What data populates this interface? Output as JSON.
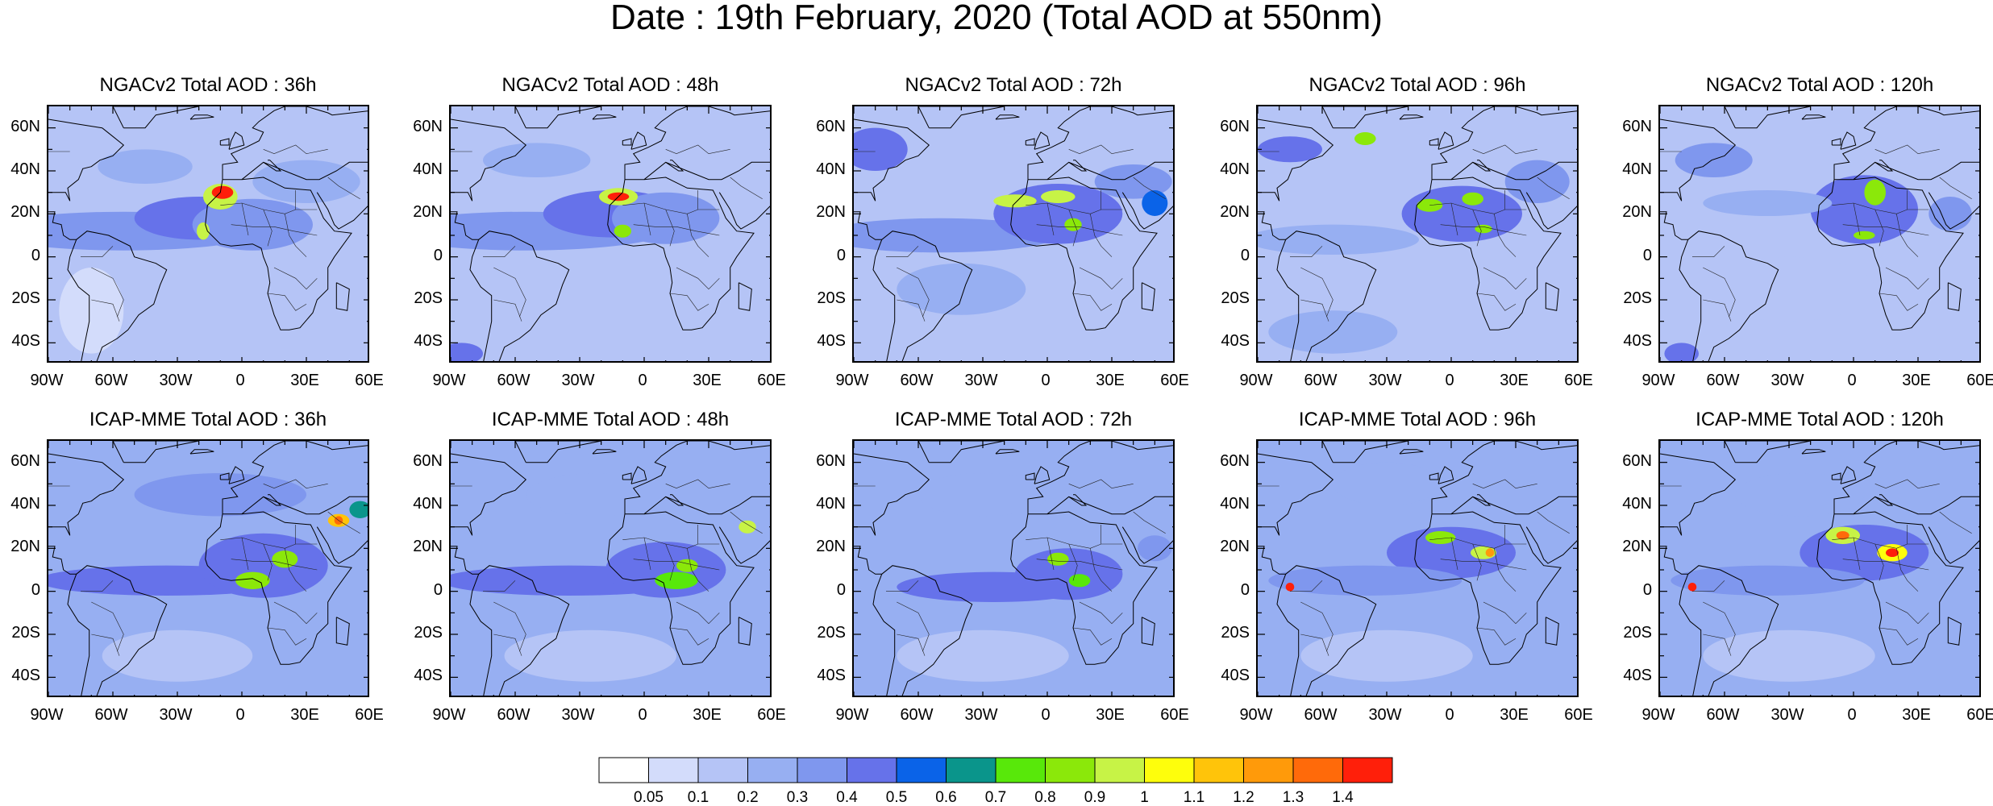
{
  "title": "Date : 19th February, 2020 (Total AOD at 550nm)",
  "lat_ticks": [
    "60N",
    "40N",
    "20N",
    "0",
    "20S",
    "40S"
  ],
  "lon_ticks": [
    "90W",
    "60W",
    "30W",
    "0",
    "30E",
    "60E"
  ],
  "panels": [
    {
      "title": "NGACv2 Total AOD : 36h"
    },
    {
      "title": "NGACv2 Total AOD : 48h"
    },
    {
      "title": "NGACv2 Total AOD : 72h"
    },
    {
      "title": "NGACv2 Total AOD : 96h"
    },
    {
      "title": "NGACv2 Total AOD : 120h"
    },
    {
      "title": "ICAP-MME Total AOD : 36h"
    },
    {
      "title": "ICAP-MME Total AOD : 48h"
    },
    {
      "title": "ICAP-MME Total AOD : 72h"
    },
    {
      "title": "ICAP-MME Total AOD : 96h"
    },
    {
      "title": "ICAP-MME Total AOD : 120h"
    }
  ],
  "colorbar": {
    "labels": [
      "0.05",
      "0.1",
      "0.2",
      "0.3",
      "0.4",
      "0.5",
      "0.6",
      "0.7",
      "0.8",
      "0.9",
      "1",
      "1.1",
      "1.2",
      "1.3",
      "1.4"
    ],
    "colors": [
      "#ffffff",
      "#d3dcfb",
      "#b5c4f6",
      "#97aff2",
      "#7f97ee",
      "#6672ea",
      "#0a63e8",
      "#0a958b",
      "#58e80a",
      "#8be80a",
      "#c7f346",
      "#fefe0c",
      "#ffc40a",
      "#ff9a0a",
      "#ff6a0a",
      "#ff1f0a"
    ]
  },
  "chart_data": {
    "type": "heatmap",
    "title": "Date : 19th February, 2020 (Total AOD at 550nm)",
    "x_axis": {
      "range": [
        -90,
        60
      ],
      "ticks": [
        -90,
        -60,
        -30,
        0,
        30,
        60
      ],
      "tick_labels": [
        "90W",
        "60W",
        "30W",
        "0",
        "30E",
        "60E"
      ]
    },
    "y_axis": {
      "range": [
        -50,
        70
      ],
      "ticks": [
        60,
        40,
        20,
        0,
        -20,
        -40
      ],
      "tick_labels": [
        "60N",
        "40N",
        "20N",
        "0",
        "20S",
        "40S"
      ]
    },
    "color_levels": [
      0.05,
      0.1,
      0.2,
      0.3,
      0.4,
      0.5,
      0.6,
      0.7,
      0.8,
      0.9,
      1,
      1.1,
      1.2,
      1.3,
      1.4
    ],
    "legend": "bottom",
    "maps": [
      {
        "title": "NGACv2 Total AOD : 36h",
        "background": 0.12,
        "features": [
          {
            "lon": -55,
            "lat": 12,
            "rx": 65,
            "ry": 9,
            "value": 0.3
          },
          {
            "lon": -20,
            "lat": 18,
            "rx": 30,
            "ry": 10,
            "value": 0.4
          },
          {
            "lon": 5,
            "lat": 15,
            "rx": 28,
            "ry": 12,
            "value": 0.35
          },
          {
            "lon": -45,
            "lat": 42,
            "rx": 22,
            "ry": 8,
            "value": 0.25
          },
          {
            "lon": -10,
            "lat": 28,
            "rx": 8,
            "ry": 6,
            "value": 0.9
          },
          {
            "lon": -9,
            "lat": 30,
            "rx": 5,
            "ry": 3,
            "value": 1.4
          },
          {
            "lon": -18,
            "lat": 12,
            "rx": 3,
            "ry": 4,
            "value": 0.9
          },
          {
            "lon": 30,
            "lat": 35,
            "rx": 25,
            "ry": 10,
            "value": 0.2
          },
          {
            "lon": -70,
            "lat": -25,
            "rx": 15,
            "ry": 20,
            "value": 0.08
          }
        ]
      },
      {
        "title": "NGACv2 Total AOD : 48h",
        "background": 0.12,
        "features": [
          {
            "lon": -55,
            "lat": 12,
            "rx": 65,
            "ry": 9,
            "value": 0.3
          },
          {
            "lon": -15,
            "lat": 20,
            "rx": 32,
            "ry": 11,
            "value": 0.4
          },
          {
            "lon": 10,
            "lat": 18,
            "rx": 25,
            "ry": 12,
            "value": 0.35
          },
          {
            "lon": -50,
            "lat": 45,
            "rx": 25,
            "ry": 8,
            "value": 0.25
          },
          {
            "lon": -12,
            "lat": 28,
            "rx": 9,
            "ry": 4,
            "value": 0.9
          },
          {
            "lon": -12,
            "lat": 28,
            "rx": 5,
            "ry": 2,
            "value": 1.4
          },
          {
            "lon": -10,
            "lat": 12,
            "rx": 4,
            "ry": 3,
            "value": 0.8
          },
          {
            "lon": -85,
            "lat": -45,
            "rx": 10,
            "ry": 5,
            "value": 0.4
          }
        ]
      },
      {
        "title": "NGACv2 Total AOD : 72h",
        "background": 0.12,
        "features": [
          {
            "lon": -50,
            "lat": 10,
            "rx": 55,
            "ry": 8,
            "value": 0.3
          },
          {
            "lon": 5,
            "lat": 20,
            "rx": 30,
            "ry": 14,
            "value": 0.4
          },
          {
            "lon": -80,
            "lat": 50,
            "rx": 15,
            "ry": 10,
            "value": 0.4
          },
          {
            "lon": -15,
            "lat": 26,
            "rx": 10,
            "ry": 3,
            "value": 0.9
          },
          {
            "lon": 5,
            "lat": 28,
            "rx": 8,
            "ry": 3,
            "value": 0.9
          },
          {
            "lon": 12,
            "lat": 15,
            "rx": 4,
            "ry": 3,
            "value": 0.8
          },
          {
            "lon": 40,
            "lat": 35,
            "rx": 18,
            "ry": 8,
            "value": 0.3
          },
          {
            "lon": 50,
            "lat": 25,
            "rx": 6,
            "ry": 6,
            "value": 0.5
          },
          {
            "lon": -40,
            "lat": -15,
            "rx": 30,
            "ry": 12,
            "value": 0.25
          }
        ]
      },
      {
        "title": "NGACv2 Total AOD : 96h",
        "background": 0.12,
        "features": [
          {
            "lon": 5,
            "lat": 20,
            "rx": 28,
            "ry": 13,
            "value": 0.45
          },
          {
            "lon": -55,
            "lat": 8,
            "rx": 40,
            "ry": 7,
            "value": 0.25
          },
          {
            "lon": -40,
            "lat": 55,
            "rx": 5,
            "ry": 3,
            "value": 0.8
          },
          {
            "lon": -75,
            "lat": 50,
            "rx": 15,
            "ry": 6,
            "value": 0.4
          },
          {
            "lon": -10,
            "lat": 24,
            "rx": 6,
            "ry": 3,
            "value": 0.85
          },
          {
            "lon": 10,
            "lat": 27,
            "rx": 5,
            "ry": 3,
            "value": 0.85
          },
          {
            "lon": 15,
            "lat": 13,
            "rx": 4,
            "ry": 2,
            "value": 0.85
          },
          {
            "lon": -55,
            "lat": -35,
            "rx": 30,
            "ry": 10,
            "value": 0.2
          },
          {
            "lon": 40,
            "lat": 35,
            "rx": 15,
            "ry": 10,
            "value": 0.3
          }
        ]
      },
      {
        "title": "NGACv2 Total AOD : 120h",
        "background": 0.12,
        "features": [
          {
            "lon": 5,
            "lat": 22,
            "rx": 25,
            "ry": 16,
            "value": 0.45
          },
          {
            "lon": -40,
            "lat": 25,
            "rx": 30,
            "ry": 6,
            "value": 0.25
          },
          {
            "lon": -65,
            "lat": 45,
            "rx": 18,
            "ry": 8,
            "value": 0.35
          },
          {
            "lon": 10,
            "lat": 30,
            "rx": 5,
            "ry": 6,
            "value": 0.85
          },
          {
            "lon": 5,
            "lat": 10,
            "rx": 5,
            "ry": 2,
            "value": 0.85
          },
          {
            "lon": -80,
            "lat": -45,
            "rx": 8,
            "ry": 5,
            "value": 0.4
          },
          {
            "lon": -30,
            "lat": -15,
            "rx": 40,
            "ry": 15,
            "value": 0.15
          },
          {
            "lon": 45,
            "lat": 20,
            "rx": 10,
            "ry": 8,
            "value": 0.3
          }
        ]
      },
      {
        "title": "ICAP-MME Total AOD : 36h",
        "background": 0.2,
        "features": [
          {
            "lon": -35,
            "lat": 5,
            "rx": 60,
            "ry": 7,
            "value": 0.4
          },
          {
            "lon": 10,
            "lat": 12,
            "rx": 30,
            "ry": 15,
            "value": 0.45
          },
          {
            "lon": -10,
            "lat": 45,
            "rx": 40,
            "ry": 10,
            "value": 0.3
          },
          {
            "lon": 5,
            "lat": 5,
            "rx": 8,
            "ry": 4,
            "value": 0.85
          },
          {
            "lon": 20,
            "lat": 15,
            "rx": 6,
            "ry": 4,
            "value": 0.85
          },
          {
            "lon": 45,
            "lat": 33,
            "rx": 5,
            "ry": 3,
            "value": 1.1
          },
          {
            "lon": 45,
            "lat": 33,
            "rx": 2,
            "ry": 2,
            "value": 1.3
          },
          {
            "lon": 55,
            "lat": 38,
            "rx": 5,
            "ry": 4,
            "value": 0.6
          },
          {
            "lon": -30,
            "lat": -30,
            "rx": 35,
            "ry": 12,
            "value": 0.15
          }
        ]
      },
      {
        "title": "ICAP-MME Total AOD : 48h",
        "background": 0.2,
        "features": [
          {
            "lon": -35,
            "lat": 5,
            "rx": 60,
            "ry": 7,
            "value": 0.4
          },
          {
            "lon": 10,
            "lat": 10,
            "rx": 28,
            "ry": 13,
            "value": 0.45
          },
          {
            "lon": 15,
            "lat": 5,
            "rx": 10,
            "ry": 4,
            "value": 0.7
          },
          {
            "lon": 20,
            "lat": 12,
            "rx": 5,
            "ry": 3,
            "value": 0.85
          },
          {
            "lon": 48,
            "lat": 30,
            "rx": 4,
            "ry": 3,
            "value": 0.9
          },
          {
            "lon": -20,
            "lat": 45,
            "rx": 35,
            "ry": 10,
            "value": 0.25
          },
          {
            "lon": -25,
            "lat": -30,
            "rx": 40,
            "ry": 12,
            "value": 0.15
          }
        ]
      },
      {
        "title": "ICAP-MME Total AOD : 72h",
        "background": 0.2,
        "features": [
          {
            "lon": -25,
            "lat": 2,
            "rx": 45,
            "ry": 7,
            "value": 0.4
          },
          {
            "lon": 10,
            "lat": 8,
            "rx": 25,
            "ry": 12,
            "value": 0.45
          },
          {
            "lon": 5,
            "lat": 15,
            "rx": 5,
            "ry": 3,
            "value": 0.85
          },
          {
            "lon": 15,
            "lat": 5,
            "rx": 5,
            "ry": 3,
            "value": 0.7
          },
          {
            "lon": -30,
            "lat": 45,
            "rx": 30,
            "ry": 10,
            "value": 0.25
          },
          {
            "lon": 50,
            "lat": 20,
            "rx": 8,
            "ry": 6,
            "value": 0.35
          },
          {
            "lon": -30,
            "lat": -30,
            "rx": 40,
            "ry": 12,
            "value": 0.15
          }
        ]
      },
      {
        "title": "ICAP-MME Total AOD : 96h",
        "background": 0.2,
        "features": [
          {
            "lon": 0,
            "lat": 18,
            "rx": 30,
            "ry": 12,
            "value": 0.45
          },
          {
            "lon": -40,
            "lat": 5,
            "rx": 45,
            "ry": 7,
            "value": 0.3
          },
          {
            "lon": -5,
            "lat": 25,
            "rx": 7,
            "ry": 3,
            "value": 0.85
          },
          {
            "lon": 15,
            "lat": 18,
            "rx": 6,
            "ry": 3,
            "value": 0.9
          },
          {
            "lon": 18,
            "lat": 18,
            "rx": 2,
            "ry": 2,
            "value": 1.2
          },
          {
            "lon": -75,
            "lat": 2,
            "rx": 2,
            "ry": 2,
            "value": 1.4
          },
          {
            "lon": -30,
            "lat": 50,
            "rx": 25,
            "ry": 10,
            "value": 0.25
          },
          {
            "lon": -30,
            "lat": -30,
            "rx": 40,
            "ry": 12,
            "value": 0.15
          }
        ]
      },
      {
        "title": "ICAP-MME Total AOD : 120h",
        "background": 0.2,
        "features": [
          {
            "lon": 5,
            "lat": 18,
            "rx": 30,
            "ry": 13,
            "value": 0.45
          },
          {
            "lon": -40,
            "lat": 5,
            "rx": 45,
            "ry": 7,
            "value": 0.3
          },
          {
            "lon": -5,
            "lat": 26,
            "rx": 8,
            "ry": 4,
            "value": 0.9
          },
          {
            "lon": -5,
            "lat": 26,
            "rx": 3,
            "ry": 2,
            "value": 1.3
          },
          {
            "lon": 18,
            "lat": 18,
            "rx": 7,
            "ry": 4,
            "value": 1.0
          },
          {
            "lon": 18,
            "lat": 18,
            "rx": 3,
            "ry": 2,
            "value": 1.4
          },
          {
            "lon": -75,
            "lat": 2,
            "rx": 2,
            "ry": 2,
            "value": 1.4
          },
          {
            "lon": -25,
            "lat": 45,
            "rx": 30,
            "ry": 10,
            "value": 0.25
          },
          {
            "lon": -30,
            "lat": -30,
            "rx": 40,
            "ry": 12,
            "value": 0.15
          }
        ]
      }
    ]
  }
}
